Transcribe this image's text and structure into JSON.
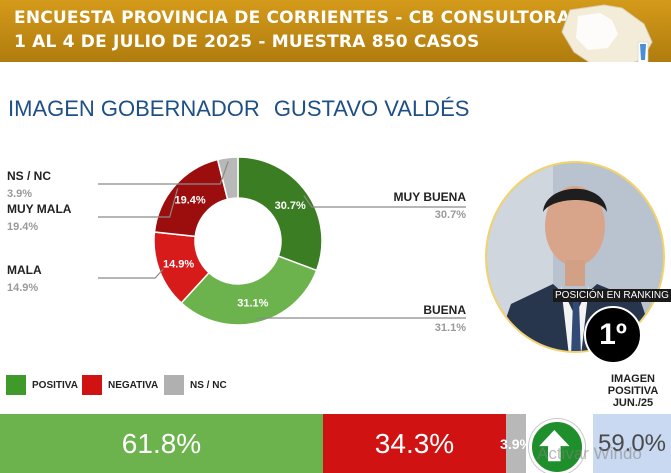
{
  "header": {
    "line1": "ENCUESTA PROVINCIA DE CORRIENTES - CB CONSULTORA OP",
    "line2": "1 AL 4 DE JULIO DE 2025 - MUESTRA 850 CASOS"
  },
  "title": {
    "prefix": "IMAGEN GOBERNADOR",
    "name": "GUSTAVO VALDÉS"
  },
  "chart_data": {
    "type": "pie",
    "title": "IMAGEN GOBERNADOR GUSTAVO VALDÉS",
    "slices": [
      {
        "label": "MUY BUENA",
        "value": 30.7,
        "display": "30.7%",
        "outside_value": "30.7%",
        "color": "#3b7d23"
      },
      {
        "label": "BUENA",
        "value": 31.1,
        "display": "31.1%",
        "outside_value": "31.1%",
        "color": "#6cb34d"
      },
      {
        "label": "MALA",
        "value": 14.9,
        "display": "14.9%",
        "outside_value": "14.9%",
        "color": "#d71a1a"
      },
      {
        "label": "MUY MALA",
        "value": 19.4,
        "display": "19.4%",
        "outside_value": "19.4%",
        "color": "#9c0e0e"
      },
      {
        "label": "NS / NC",
        "value": 3.9,
        "display": "",
        "outside_value": "3.9%",
        "color": "#b8b8b8"
      }
    ],
    "legend": [
      {
        "label": "POSITIVA",
        "color": "#3f9a2a"
      },
      {
        "label": "NEGATIVA",
        "color": "#d11212"
      },
      {
        "label": "NS / NC",
        "color": "#b0b0b0"
      }
    ],
    "summary": [
      {
        "label": "POSITIVA",
        "value": 61.8,
        "display": "61.8%",
        "color": "#6cb34d"
      },
      {
        "label": "NEGATIVA",
        "value": 34.3,
        "display": "34.3%",
        "color": "#d11212"
      },
      {
        "label": "NS / NC",
        "value": 3.9,
        "display": "3.9%",
        "color": "#b8b8b8"
      }
    ]
  },
  "ranking": {
    "label": "POSICIÓN EN RANKING",
    "value": "1º"
  },
  "image_positive": {
    "label_line1": "IMAGEN",
    "label_line2": "POSITIVA",
    "label_line3": "JUN./25",
    "value": "59.0%",
    "trend_icon": "up-arrow-icon"
  },
  "watermark": "Activar Windo"
}
